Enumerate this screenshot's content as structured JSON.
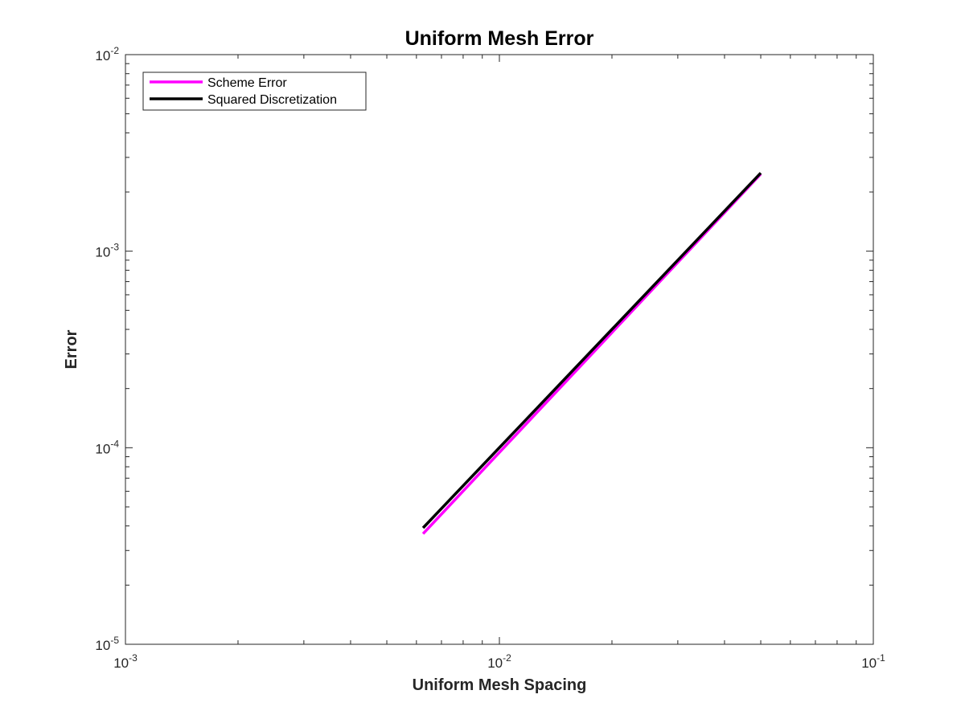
{
  "chart_data": {
    "type": "line",
    "title": "Uniform Mesh Error",
    "xlabel": "Uniform Mesh Spacing",
    "ylabel": "Error",
    "xscale": "log",
    "yscale": "log",
    "xlim": [
      0.001,
      0.1
    ],
    "ylim": [
      1e-05,
      0.01
    ],
    "x_ticks": [
      {
        "base": "10",
        "exp": "-3",
        "value": 0.001
      },
      {
        "base": "10",
        "exp": "-2",
        "value": 0.01
      },
      {
        "base": "10",
        "exp": "-1",
        "value": 0.1
      }
    ],
    "y_ticks": [
      {
        "base": "10",
        "exp": "-5",
        "value": 1e-05
      },
      {
        "base": "10",
        "exp": "-4",
        "value": 0.0001
      },
      {
        "base": "10",
        "exp": "-3",
        "value": 0.001
      },
      {
        "base": "10",
        "exp": "-2",
        "value": 0.01
      }
    ],
    "grid": false,
    "box": true,
    "legend_position": "top-left",
    "series": [
      {
        "name": "Scheme Error",
        "color": "#ff00ff",
        "x": [
          0.00625,
          0.05
        ],
        "y": [
          3.65e-05,
          0.00247
        ]
      },
      {
        "name": "Squared Discretization",
        "color": "#000000",
        "x": [
          0.00625,
          0.05
        ],
        "y": [
          3.91e-05,
          0.0025
        ]
      }
    ]
  }
}
